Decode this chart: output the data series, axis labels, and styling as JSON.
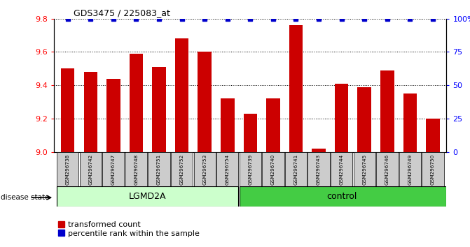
{
  "title": "GDS3475 / 225083_at",
  "samples": [
    "GSM296738",
    "GSM296742",
    "GSM296747",
    "GSM296748",
    "GSM296751",
    "GSM296752",
    "GSM296753",
    "GSM296754",
    "GSM296739",
    "GSM296740",
    "GSM296741",
    "GSM296743",
    "GSM296744",
    "GSM296745",
    "GSM296746",
    "GSM296749",
    "GSM296750"
  ],
  "bar_values": [
    9.5,
    9.48,
    9.44,
    9.59,
    9.51,
    9.68,
    9.6,
    9.32,
    9.23,
    9.32,
    9.76,
    9.02,
    9.41,
    9.39,
    9.49,
    9.35,
    9.2
  ],
  "percentile_values": [
    100,
    100,
    100,
    100,
    100,
    100,
    100,
    100,
    100,
    100,
    100,
    100,
    100,
    100,
    100,
    100,
    100
  ],
  "bar_color": "#cc0000",
  "percentile_color": "#0000cc",
  "ylim_left": [
    9.0,
    9.8
  ],
  "ylim_right": [
    0,
    100
  ],
  "yticks_left": [
    9.0,
    9.2,
    9.4,
    9.6,
    9.8
  ],
  "yticks_right": [
    0,
    25,
    50,
    75,
    100
  ],
  "ytick_labels_right": [
    "0",
    "25",
    "50",
    "75",
    "100%"
  ],
  "group1_label": "LGMD2A",
  "group2_label": "control",
  "group1_count": 8,
  "group2_count": 9,
  "disease_state_label": "disease state",
  "legend_bar_label": "transformed count",
  "legend_percentile_label": "percentile rank within the sample",
  "group1_color": "#ccffcc",
  "group2_color": "#44cc44",
  "tick_label_bg": "#cccccc",
  "bar_width": 0.6
}
